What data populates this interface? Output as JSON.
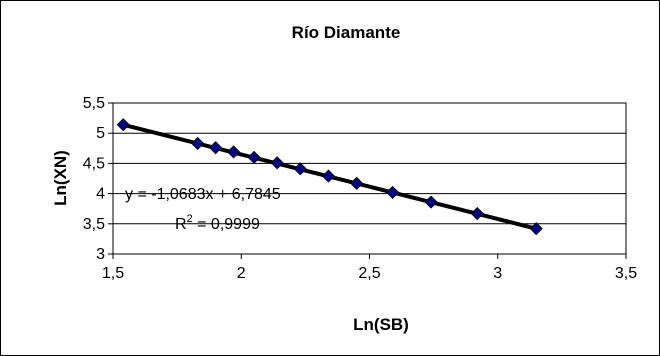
{
  "chart_data": {
    "type": "scatter",
    "title": "Río Diamante",
    "xlabel": "Ln(SB)",
    "ylabel": "Ln(XN)",
    "xlim": [
      1.5,
      3.5
    ],
    "ylim": [
      3,
      5.5
    ],
    "x_ticks": [
      "1,5",
      "2",
      "2,5",
      "3",
      "3,5"
    ],
    "y_ticks": [
      "3",
      "3,5",
      "4",
      "4,5",
      "5",
      "5,5"
    ],
    "grid": "horizontal",
    "legend": "none",
    "series": [
      {
        "marker": "diamond",
        "color": "#000080",
        "x": [
          1.54,
          1.83,
          1.9,
          1.97,
          2.05,
          2.14,
          2.23,
          2.34,
          2.45,
          2.59,
          2.74,
          2.92,
          3.15
        ],
        "y": [
          5.14,
          4.83,
          4.76,
          4.69,
          4.6,
          4.51,
          4.41,
          4.29,
          4.17,
          4.02,
          3.86,
          3.67,
          3.42
        ]
      }
    ],
    "trendline": {
      "type": "linear",
      "slope": -1.0683,
      "intercept": 6.7845,
      "color": "#000000",
      "equation_label": "y = -1,0683x + 6,7845",
      "r2_label_prefix": "R",
      "r2_label_exponent": "2",
      "r2_label_suffix": " = 0,9999"
    }
  }
}
